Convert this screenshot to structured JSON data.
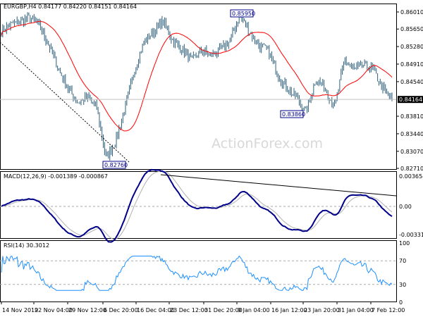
{
  "header": {
    "symbol": "EURGBP,H4",
    "ohlc": "0.84177 0.84220 0.84151 0.84164"
  },
  "watermark": "ActionForex.com",
  "chart_data": [
    {
      "type": "candlestick",
      "title": "EURGBP,H4 0.84177 0.84220 0.84151 0.84164",
      "y_ticks": [
        "0.86010",
        "0.85650",
        "0.85280",
        "0.84910",
        "0.84540",
        "0.84164",
        "0.83810",
        "0.83440",
        "0.83070",
        "0.82710"
      ],
      "ylim": [
        0.8271,
        0.8601
      ],
      "current_price": "0.84164",
      "annotations": [
        "0.85950",
        "0.83860",
        "0.82760"
      ],
      "close_path": [
        0.856,
        0.8575,
        0.858,
        0.859,
        0.857,
        0.853,
        0.848,
        0.844,
        0.841,
        0.842,
        0.84,
        0.829,
        0.833,
        0.84,
        0.848,
        0.854,
        0.856,
        0.858,
        0.854,
        0.852,
        0.85,
        0.852,
        0.851,
        0.852,
        0.854,
        0.8595,
        0.856,
        0.853,
        0.852,
        0.847,
        0.844,
        0.842,
        0.839,
        0.846,
        0.844,
        0.84,
        0.85,
        0.848,
        0.849,
        0.848,
        0.844,
        0.8416
      ],
      "colors": {
        "candle": "#2e5f7a",
        "ma": "#ff0000"
      }
    },
    {
      "type": "line",
      "title": "MACD(12,26,9) -0.001389 -0.000867",
      "y_ticks": [
        "0.003654",
        "0.00",
        "-0.003314"
      ],
      "ylim": [
        -0.003314,
        0.003654
      ],
      "colors": {
        "macd": "#00008b",
        "signal": "#b0b0b0"
      }
    },
    {
      "type": "line",
      "title": "RSI(14) 30.3012",
      "y_ticks": [
        "100",
        "70",
        "30",
        "0"
      ],
      "ylim": [
        0,
        100
      ],
      "colors": {
        "rsi": "#1e90ff"
      }
    }
  ],
  "x_ticks": [
    "14 Nov 2019",
    "22 Nov 04:00",
    "29 Nov 12:00",
    "6 Dec 20:00",
    "16 Dec 04:00",
    "23 Dec 12:00",
    "31 Dec 20:00",
    "9 Jan 04:00",
    "16 Jan 12:00",
    "23 Jan 20:00",
    "31 Jan 04:00",
    "7 Feb 12:00"
  ]
}
